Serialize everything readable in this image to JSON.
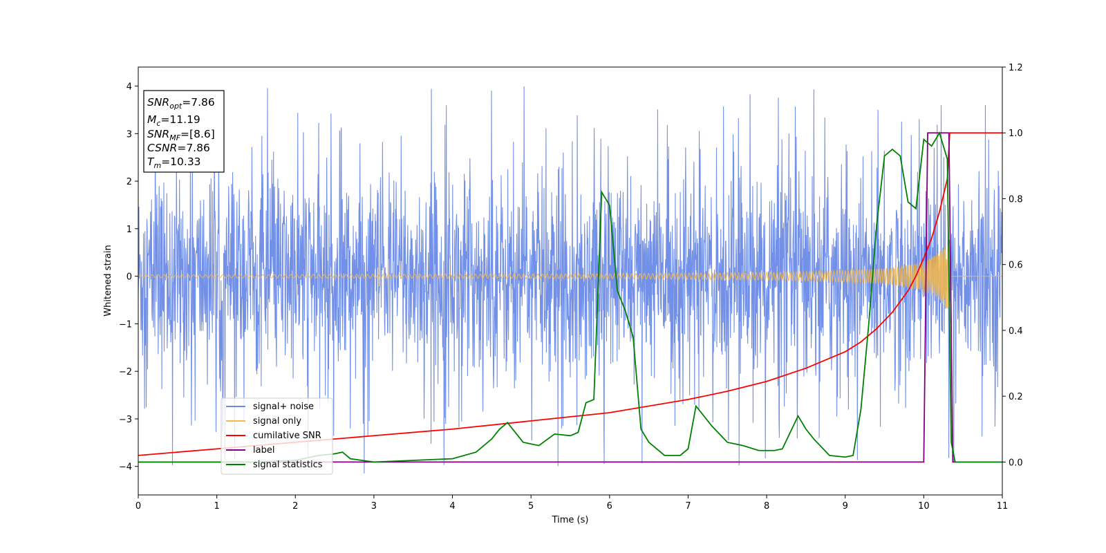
{
  "chart_data": {
    "type": "line",
    "xlabel": "Time (s)",
    "ylabel": "Whitened strain",
    "xlim": [
      0,
      11
    ],
    "ylim_left": [
      -4.6,
      4.4
    ],
    "ylim_right": [
      -0.1,
      1.2
    ],
    "xticks": [
      "0",
      "1",
      "2",
      "3",
      "4",
      "5",
      "6",
      "7",
      "8",
      "9",
      "10",
      "11"
    ],
    "xtick_values": [
      0,
      1,
      2,
      3,
      4,
      5,
      6,
      7,
      8,
      9,
      10,
      11
    ],
    "yticks_left": [
      "4",
      "3",
      "2",
      "1",
      "0",
      "−1",
      "−2",
      "−3",
      "−4"
    ],
    "ytick_left_values": [
      4,
      3,
      2,
      1,
      0,
      -1,
      -2,
      -3,
      -4
    ],
    "yticks_right": [
      "1.2",
      "1.0",
      "0.8",
      "0.6",
      "0.4",
      "0.2",
      "0.0"
    ],
    "ytick_right_values": [
      1.2,
      1.0,
      0.8,
      0.6,
      0.4,
      0.2,
      0.0
    ],
    "grid": false,
    "legend_position": "lower-left",
    "colors": {
      "signal_noise": "#6a8ae6",
      "signal_only": "#f5b84a",
      "cumulative_snr": "#ff0000",
      "label": "#800080",
      "signal_statistics": "#008000"
    },
    "series": [
      {
        "name": "signal+ noise",
        "axis": "left",
        "description_values": "whitened strain noise, amplitude mostly within [-2.6, 2.6], spikes to ~4.0"
      },
      {
        "name": "signal only",
        "axis": "left",
        "envelope": {
          "x": [
            0,
            6,
            8,
            9,
            9.5,
            10,
            10.2,
            10.33
          ],
          "amp": [
            0.03,
            0.05,
            0.08,
            0.12,
            0.16,
            0.3,
            0.5,
            0.75
          ]
        }
      },
      {
        "name": "cumilative SNR",
        "axis": "right",
        "x": [
          0,
          1,
          2,
          3,
          4,
          5,
          6,
          7,
          7.5,
          8,
          8.5,
          9,
          9.2,
          9.4,
          9.6,
          9.8,
          9.9,
          10.0,
          10.1,
          10.2,
          10.3,
          10.33,
          11
        ],
        "y": [
          0.02,
          0.04,
          0.06,
          0.08,
          0.1,
          0.125,
          0.15,
          0.19,
          0.215,
          0.245,
          0.285,
          0.335,
          0.365,
          0.405,
          0.455,
          0.52,
          0.565,
          0.62,
          0.68,
          0.76,
          0.86,
          1.0,
          1.0
        ]
      },
      {
        "name": "label",
        "axis": "right",
        "x": [
          0,
          10.0,
          10.05,
          10.32,
          10.37,
          11
        ],
        "y": [
          0,
          0,
          1,
          1,
          0,
          0
        ]
      },
      {
        "name": "signal statistics",
        "axis": "right",
        "x": [
          0,
          1,
          1.5,
          2,
          2.3,
          2.5,
          2.6,
          2.7,
          3,
          3.5,
          4,
          4.3,
          4.5,
          4.6,
          4.7,
          4.8,
          4.9,
          5,
          5.1,
          5.3,
          5.5,
          5.6,
          5.7,
          5.8,
          5.9,
          6.0,
          6.1,
          6.2,
          6.3,
          6.4,
          6.5,
          6.7,
          6.9,
          7.0,
          7.1,
          7.2,
          7.3,
          7.5,
          7.7,
          7.9,
          8.1,
          8.2,
          8.3,
          8.4,
          8.5,
          8.6,
          8.8,
          9.0,
          9.1,
          9.2,
          9.3,
          9.4,
          9.5,
          9.6,
          9.7,
          9.8,
          9.9,
          10.0,
          10.1,
          10.2,
          10.3,
          10.35,
          10.4,
          10.5,
          11
        ],
        "y": [
          0.0,
          0.0,
          0.0,
          0.005,
          0.02,
          0.025,
          0.03,
          0.01,
          0.0,
          0.005,
          0.01,
          0.03,
          0.07,
          0.1,
          0.12,
          0.09,
          0.06,
          0.055,
          0.05,
          0.085,
          0.08,
          0.09,
          0.18,
          0.19,
          0.82,
          0.78,
          0.52,
          0.46,
          0.38,
          0.1,
          0.06,
          0.02,
          0.02,
          0.04,
          0.17,
          0.14,
          0.11,
          0.06,
          0.05,
          0.035,
          0.035,
          0.04,
          0.09,
          0.14,
          0.1,
          0.07,
          0.02,
          0.015,
          0.02,
          0.16,
          0.42,
          0.72,
          0.93,
          0.95,
          0.93,
          0.79,
          0.77,
          0.98,
          0.96,
          1.0,
          0.92,
          0.06,
          0.0,
          0.0,
          0.0
        ]
      }
    ]
  },
  "annotation": {
    "lines": [
      {
        "main": "SNR",
        "sub": "opt",
        "rest": "=7.86"
      },
      {
        "main": "M",
        "sub": "c",
        "rest": "=11.19"
      },
      {
        "main": "SNR",
        "sub": "MF",
        "rest": "=[8.6]"
      },
      {
        "main": "CSNR",
        "sub": "",
        "rest": "=7.86"
      },
      {
        "main": "T",
        "sub": "m",
        "rest": "=10.33"
      }
    ]
  },
  "legend": {
    "items": [
      {
        "label": "signal+ noise",
        "color": "#6a8ae6"
      },
      {
        "label": "signal only",
        "color": "#f5b84a"
      },
      {
        "label": "cumilative SNR",
        "color": "#ff0000"
      },
      {
        "label": "label",
        "color": "#800080"
      },
      {
        "label": "signal statistics",
        "color": "#008000"
      }
    ]
  }
}
